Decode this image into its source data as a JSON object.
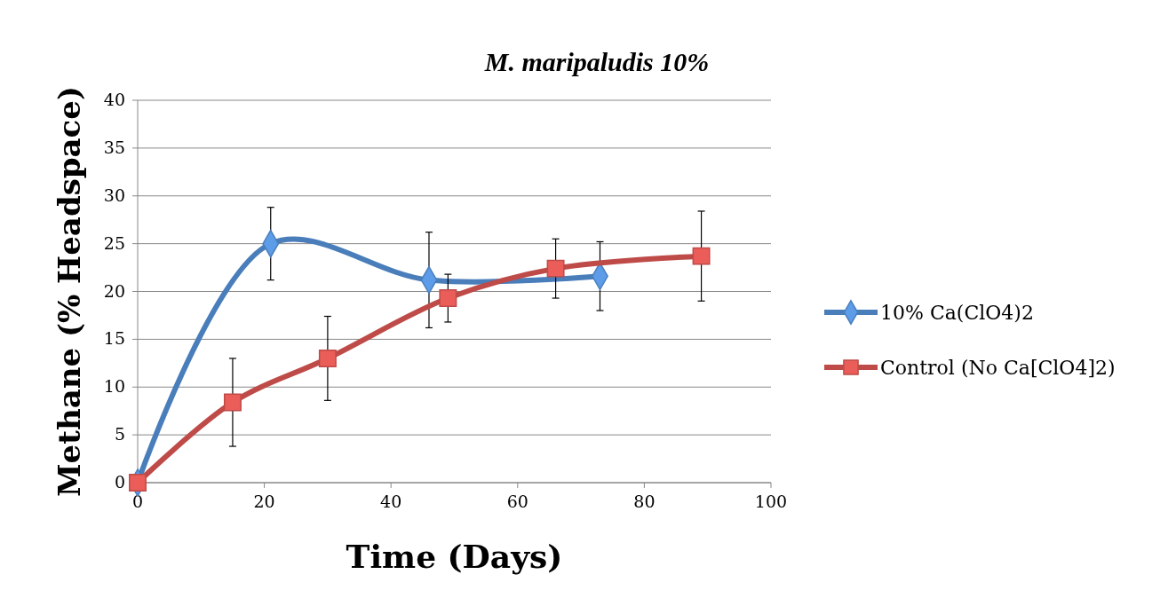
{
  "chart_data": {
    "type": "line",
    "title": "M. maripaludis 10%",
    "xlabel": "Time (Days)",
    "ylabel": "Methane (% Headspace)",
    "xlim": [
      0,
      100
    ],
    "xticks": [
      0,
      20,
      40,
      60,
      80,
      100
    ],
    "ylim": [
      0,
      40
    ],
    "yticks": [
      0,
      5,
      10,
      15,
      20,
      25,
      30,
      35,
      40
    ],
    "grid": "y",
    "legend": "right",
    "series": [
      {
        "name": "10% Ca(ClO4)2",
        "color": "#4a7ebb",
        "marker": "diamond",
        "x": [
          0,
          21,
          46,
          73
        ],
        "values": [
          0,
          25,
          21.2,
          21.6
        ],
        "errors": [
          null,
          3.8,
          5,
          3.6
        ]
      },
      {
        "name": "Control (No Ca[ClO4]2)",
        "color": "#be4b48",
        "marker": "square",
        "x": [
          0,
          15,
          30,
          49,
          66,
          89
        ],
        "values": [
          0,
          8.4,
          13,
          19.3,
          22.4,
          23.7
        ],
        "errors": [
          null,
          4.6,
          4.4,
          2.5,
          3.1,
          4.7
        ]
      }
    ]
  }
}
